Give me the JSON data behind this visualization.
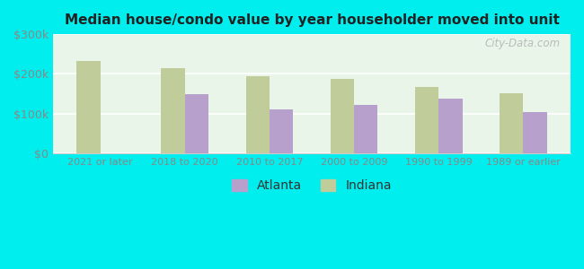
{
  "title": "Median house/condo value by year householder moved into unit",
  "categories": [
    "2021 or later",
    "2018 to 2020",
    "2010 to 2017",
    "2000 to 2009",
    "1990 to 1999",
    "1989 or earlier"
  ],
  "atlanta_values": [
    null,
    148000,
    110000,
    122000,
    138000,
    103000
  ],
  "indiana_values": [
    232000,
    215000,
    193000,
    188000,
    168000,
    152000
  ],
  "bar_color_atlanta": "#b8a0cc",
  "bar_color_indiana": "#c0cc99",
  "background_color": "#00eeee",
  "plot_bg": "#e8f5e8",
  "ylim": [
    0,
    300000
  ],
  "yticks": [
    0,
    100000,
    200000,
    300000
  ],
  "ytick_labels": [
    "$0",
    "$100k",
    "$200k",
    "$300k"
  ],
  "watermark": "City-Data.com",
  "legend_labels": [
    "Atlanta",
    "Indiana"
  ],
  "bar_width": 0.28
}
